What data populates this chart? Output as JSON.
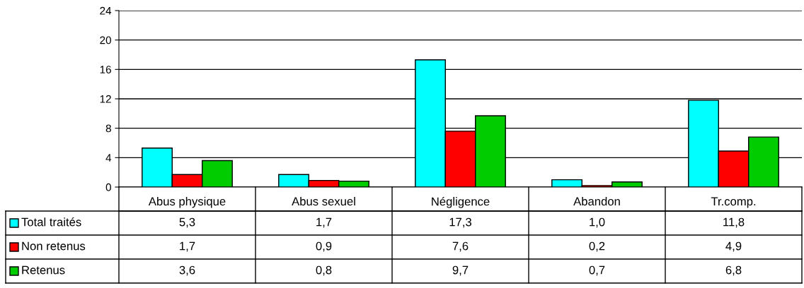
{
  "chart_data": {
    "type": "bar",
    "categories": [
      "Abus physique",
      "Abus sexuel",
      "Négligence",
      "Abandon",
      "Tr.comp."
    ],
    "series": [
      {
        "name": "Total traités",
        "color": "#00ffff",
        "values": [
          5.3,
          1.7,
          17.3,
          1.0,
          11.8
        ],
        "value_labels": [
          "5,3",
          "1,7",
          "17,3",
          "1,0",
          "11,8"
        ]
      },
      {
        "name": "Non retenus",
        "color": "#ff0000",
        "values": [
          1.7,
          0.9,
          7.6,
          0.2,
          4.9
        ],
        "value_labels": [
          "1,7",
          "0,9",
          "7,6",
          "0,2",
          "4,9"
        ]
      },
      {
        "name": "Retenus",
        "color": "#00cc00",
        "values": [
          3.6,
          0.8,
          9.7,
          0.7,
          6.8
        ],
        "value_labels": [
          "3,6",
          "0,8",
          "9,7",
          "0,7",
          "6,8"
        ]
      }
    ],
    "ylim": [
      0,
      24
    ],
    "yticks": [
      0,
      4,
      8,
      12,
      16,
      20,
      24
    ],
    "grid": "y",
    "legend": "bottom left"
  }
}
